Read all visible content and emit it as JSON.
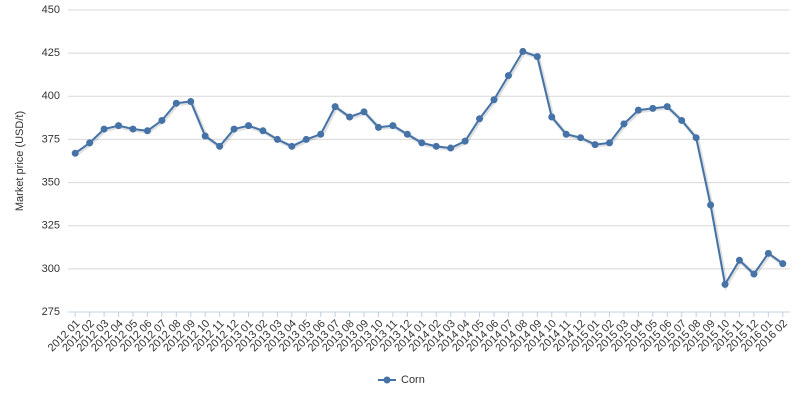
{
  "chart_data": {
    "type": "line",
    "y_label": "Market price (USD/t)",
    "categories": [
      "2012 01",
      "2012 02",
      "2012 03",
      "2012 04",
      "2012 05",
      "2012 06",
      "2012 07",
      "2012 08",
      "2012 09",
      "2012 10",
      "2012 11",
      "2012 12",
      "2013 01",
      "2013 02",
      "2013 03",
      "2013 04",
      "2013 05",
      "2013 06",
      "2013 07",
      "2013 08",
      "2013 09",
      "2013 10",
      "2013 11",
      "2013 12",
      "2014 01",
      "2014 02",
      "2014 03",
      "2014 04",
      "2014 05",
      "2014 06",
      "2014 07",
      "2014 08",
      "2014 09",
      "2014 10",
      "2014 11",
      "2014 12",
      "2015 01",
      "2015 02",
      "2015 03",
      "2015 04",
      "2015 05",
      "2015 06",
      "2015 07",
      "2015 08",
      "2015 09",
      "2015 10",
      "2015 11",
      "2015 12",
      "2016 01",
      "2016 02"
    ],
    "series": [
      {
        "name": "Corn",
        "color": "#4572a7",
        "values": [
          367,
          373,
          381,
          383,
          381,
          380,
          386,
          396,
          397,
          377,
          371,
          381,
          383,
          380,
          375,
          371,
          375,
          378,
          394,
          388,
          391,
          382,
          383,
          378,
          373,
          371,
          370,
          374,
          387,
          398,
          412,
          426,
          423,
          388,
          378,
          376,
          372,
          373,
          384,
          392,
          393,
          394,
          386,
          376,
          337,
          291,
          305,
          297,
          309,
          303
        ]
      }
    ],
    "ylim": [
      275,
      450
    ],
    "yticks": [
      275,
      300,
      325,
      350,
      375,
      400,
      425,
      450
    ],
    "grid": true,
    "legend": "bottom"
  }
}
